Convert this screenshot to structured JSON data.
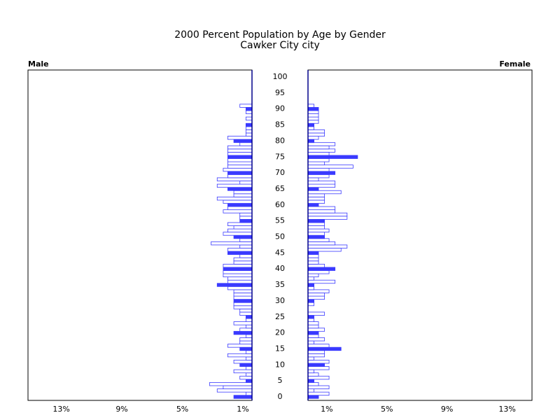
{
  "chart_data": {
    "type": "pyramid",
    "title": "2000 Percent Population by Age by Gender",
    "subtitle": "Cawker City city",
    "categories": [
      "0",
      null,
      null,
      null,
      null,
      "5",
      null,
      null,
      null,
      null,
      "10",
      null,
      null,
      null,
      null,
      "15",
      null,
      null,
      null,
      null,
      "20",
      null,
      null,
      null,
      null,
      "25",
      null,
      null,
      null,
      null,
      "30",
      null,
      null,
      null,
      null,
      "35",
      null,
      null,
      null,
      null,
      "40",
      null,
      null,
      null,
      null,
      "45",
      null,
      null,
      null,
      null,
      "50",
      null,
      null,
      null,
      null,
      "55",
      null,
      null,
      null,
      null,
      "60",
      null,
      null,
      null,
      null,
      "65",
      null,
      null,
      null,
      null,
      "70",
      null,
      null,
      null,
      null,
      "75",
      null,
      null,
      null,
      null,
      "80",
      null,
      null,
      null,
      null,
      "85",
      null,
      null,
      null,
      null,
      "90",
      null,
      null,
      null,
      null,
      "95",
      null,
      null,
      null,
      null,
      "100"
    ],
    "color": "#3a3aff",
    "series": [
      {
        "name": "Male",
        "xlim": [
          14.8,
          0
        ],
        "xticks": [
          {
            "value": 12.6,
            "label": "13%"
          },
          {
            "value": 8.6,
            "label": "9%"
          },
          {
            "value": 4.6,
            "label": "5%"
          },
          {
            "value": 0.6,
            "label": "1%"
          }
        ],
        "values": [
          1.2,
          0.4,
          2.3,
          1.9,
          2.8,
          0.4,
          0.8,
          0.4,
          1.2,
          0.4,
          0.8,
          1.2,
          0.4,
          1.6,
          0.4,
          0.8,
          1.6,
          0.8,
          0.8,
          0.4,
          1.2,
          0.8,
          0.4,
          1.2,
          0.4,
          0.4,
          0.8,
          0.8,
          1.2,
          1.2,
          1.2,
          1.2,
          1.2,
          1.2,
          1.6,
          2.3,
          1.6,
          1.6,
          1.9,
          1.9,
          1.9,
          1.9,
          1.2,
          1.2,
          0.8,
          1.6,
          1.6,
          0.8,
          2.7,
          0.8,
          1.2,
          1.9,
          1.6,
          1.2,
          1.6,
          0.8,
          0.8,
          0.8,
          1.9,
          1.6,
          1.6,
          1.9,
          2.3,
          1.2,
          1.2,
          1.6,
          2.3,
          0.8,
          2.3,
          1.6,
          1.6,
          1.9,
          1.6,
          1.6,
          1.6,
          1.6,
          1.6,
          1.6,
          1.6,
          0.8,
          1.2,
          1.6,
          0.4,
          0.4,
          0.4,
          0.4,
          0,
          0.4,
          0,
          0.4,
          0.4,
          0.8,
          0,
          0,
          0,
          0,
          0,
          0,
          0,
          0,
          0
        ]
      },
      {
        "name": "Female",
        "xlim": [
          0,
          14.9
        ],
        "xticks": [
          {
            "value": 1.25,
            "label": "1%"
          },
          {
            "value": 5.25,
            "label": "5%"
          },
          {
            "value": 9.25,
            "label": "9%"
          },
          {
            "value": 13.25,
            "label": "13%"
          }
        ],
        "values": [
          0.7,
          1.4,
          0.4,
          1.4,
          0.7,
          0.4,
          1.4,
          0.7,
          0.4,
          1.4,
          1.1,
          1.4,
          0.4,
          1.1,
          1.1,
          2.2,
          1.4,
          0.4,
          1.1,
          0.7,
          0.7,
          1.1,
          0.7,
          0.7,
          0.4,
          0.4,
          1.1,
          0,
          0,
          0.4,
          0.4,
          1.1,
          1.1,
          1.4,
          0.4,
          0.4,
          1.8,
          0.4,
          0.7,
          1.4,
          1.8,
          1.1,
          0.7,
          0.7,
          0.7,
          0.7,
          2.2,
          2.6,
          1.8,
          1.4,
          1.1,
          1.1,
          1.4,
          1.1,
          1.1,
          1.1,
          2.6,
          2.6,
          1.8,
          1.8,
          0.7,
          1.1,
          1.1,
          1.1,
          2.2,
          0.7,
          1.8,
          1.8,
          0.7,
          1.4,
          1.8,
          1.4,
          3.0,
          1.1,
          1.4,
          3.3,
          1.4,
          1.8,
          1.4,
          1.8,
          0.4,
          0.7,
          1.1,
          1.1,
          0.4,
          0.4,
          0.7,
          0.7,
          0.7,
          0.7,
          0.7,
          0.4,
          0,
          0,
          0,
          0,
          0,
          0,
          0,
          0,
          0
        ]
      }
    ]
  }
}
